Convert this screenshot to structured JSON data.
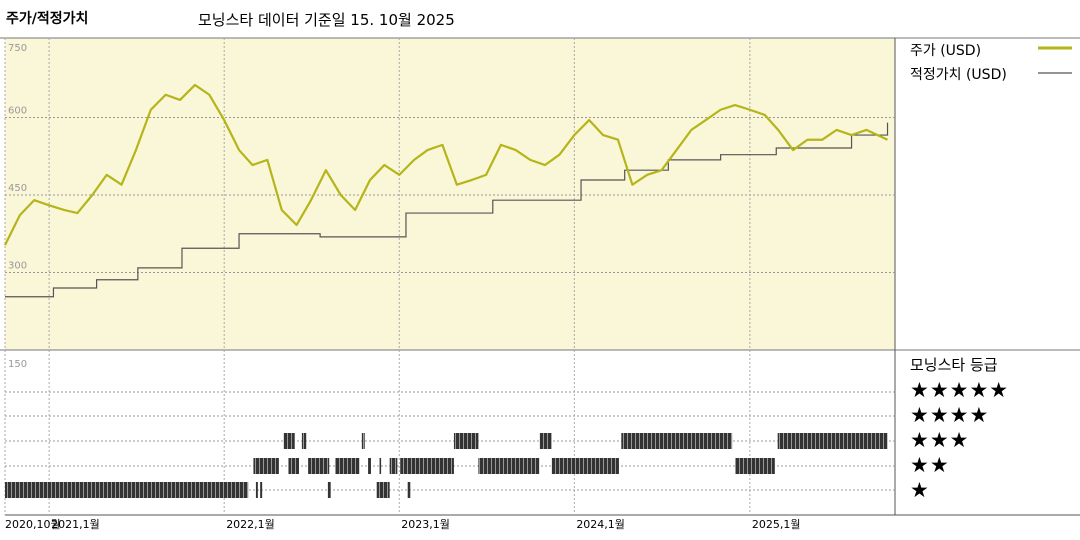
{
  "header": {
    "title": "주가/적정가치",
    "subtitle": "모닝스타 데이터 기준일 15. 10월 2025"
  },
  "legend": {
    "price_label": "주가 (USD)",
    "fair_label": "적정가치 (USD)",
    "rating_label": "모닝스타 등급"
  },
  "colors": {
    "price": "#b5b51a",
    "fair": "#555555",
    "plot_bg": "#faf6d8",
    "bar": "#333333"
  },
  "rating_rows": [
    "★★★★★",
    "★★★★",
    "★★★",
    "★★",
    "★"
  ],
  "chart_data": [
    {
      "type": "line",
      "ylim": [
        150,
        750
      ],
      "yticks": [
        "750",
        "600",
        "450",
        "300"
      ],
      "xticks": [
        {
          "date": "2020-10-01",
          "label": "2020,10월"
        },
        {
          "date": "2021-01-01",
          "label": "2021,1월"
        },
        {
          "date": "2022-01-01",
          "label": "2022,1월"
        },
        {
          "date": "2023-01-01",
          "label": "2023,1월"
        },
        {
          "date": "2024-01-01",
          "label": "2024,1월"
        },
        {
          "date": "2025-01-01",
          "label": "2025,1월"
        }
      ],
      "series": [
        {
          "name": "주가 (USD)",
          "points": [
            [
              "2020-10-01",
              353
            ],
            [
              "2020-11-01",
              411
            ],
            [
              "2020-12-01",
              440
            ],
            [
              "2021-01-01",
              430
            ],
            [
              "2021-02-01",
              421
            ],
            [
              "2021-03-01",
              415
            ],
            [
              "2021-04-01",
              450
            ],
            [
              "2021-05-01",
              489
            ],
            [
              "2021-06-01",
              470
            ],
            [
              "2021-07-01",
              537
            ],
            [
              "2021-08-01",
              615
            ],
            [
              "2021-09-01",
              644
            ],
            [
              "2021-10-01",
              634
            ],
            [
              "2021-11-01",
              663
            ],
            [
              "2021-12-01",
              644
            ],
            [
              "2022-01-01",
              595
            ],
            [
              "2022-02-01",
              537
            ],
            [
              "2022-03-01",
              508
            ],
            [
              "2022-04-01",
              518
            ],
            [
              "2022-05-01",
              421
            ],
            [
              "2022-06-01",
              392
            ],
            [
              "2022-07-01",
              440
            ],
            [
              "2022-08-01",
              498
            ],
            [
              "2022-09-01",
              450
            ],
            [
              "2022-10-01",
              421
            ],
            [
              "2022-11-01",
              479
            ],
            [
              "2022-12-01",
              508
            ],
            [
              "2023-01-01",
              489
            ],
            [
              "2023-02-01",
              518
            ],
            [
              "2023-03-01",
              537
            ],
            [
              "2023-04-01",
              547
            ],
            [
              "2023-05-01",
              470
            ],
            [
              "2023-06-01",
              479
            ],
            [
              "2023-07-01",
              489
            ],
            [
              "2023-08-01",
              547
            ],
            [
              "2023-09-01",
              537
            ],
            [
              "2023-10-01",
              518
            ],
            [
              "2023-11-01",
              508
            ],
            [
              "2023-12-01",
              528
            ],
            [
              "2024-01-01",
              566
            ],
            [
              "2024-02-01",
              595
            ],
            [
              "2024-03-01",
              566
            ],
            [
              "2024-04-01",
              557
            ],
            [
              "2024-05-01",
              470
            ],
            [
              "2024-06-01",
              489
            ],
            [
              "2024-07-01",
              498
            ],
            [
              "2024-08-01",
              537
            ],
            [
              "2024-09-01",
              576
            ],
            [
              "2024-10-01",
              595
            ],
            [
              "2024-11-01",
              615
            ],
            [
              "2024-12-01",
              624
            ],
            [
              "2025-01-01",
              615
            ],
            [
              "2025-02-01",
              605
            ],
            [
              "2025-03-01",
              576
            ],
            [
              "2025-04-01",
              537
            ],
            [
              "2025-05-01",
              557
            ],
            [
              "2025-06-01",
              557
            ],
            [
              "2025-07-01",
              576
            ],
            [
              "2025-08-01",
              566
            ],
            [
              "2025-09-01",
              576
            ],
            [
              "2025-10-15",
              557
            ]
          ]
        },
        {
          "name": "적정가치 (USD)",
          "step": true,
          "points": [
            [
              "2020-10-01",
              253
            ],
            [
              "2021-01-10",
              270
            ],
            [
              "2021-04-10",
              286
            ],
            [
              "2021-07-05",
              309
            ],
            [
              "2021-10-05",
              347
            ],
            [
              "2022-02-01",
              375
            ],
            [
              "2022-07-20",
              369
            ],
            [
              "2023-01-15",
              415
            ],
            [
              "2023-07-15",
              440
            ],
            [
              "2024-01-15",
              479
            ],
            [
              "2024-04-15",
              498
            ],
            [
              "2024-07-15",
              518
            ],
            [
              "2024-11-01",
              528
            ],
            [
              "2025-02-25",
              541
            ],
            [
              "2025-08-01",
              566
            ],
            [
              "2025-10-15",
              590
            ]
          ]
        }
      ]
    },
    {
      "type": "bar",
      "title": "모닝스타 등급",
      "yticks": [
        "150"
      ],
      "periods": [
        {
          "stars": 1,
          "start": "2020-10-01",
          "end": "2022-02-20"
        },
        {
          "stars": 1,
          "start": "2022-03-08",
          "end": "2022-03-11"
        },
        {
          "stars": 1,
          "start": "2022-03-17",
          "end": "2022-03-20"
        },
        {
          "stars": 1,
          "start": "2022-08-05",
          "end": "2022-08-11"
        },
        {
          "stars": 1,
          "start": "2022-11-15",
          "end": "2022-12-12"
        },
        {
          "stars": 1,
          "start": "2023-01-18",
          "end": "2023-01-24"
        },
        {
          "stars": 2,
          "start": "2022-03-03",
          "end": "2022-04-25"
        },
        {
          "stars": 2,
          "start": "2022-05-15",
          "end": "2022-06-06"
        },
        {
          "stars": 2,
          "start": "2022-06-25",
          "end": "2022-08-08"
        },
        {
          "stars": 2,
          "start": "2022-08-20",
          "end": "2022-10-10"
        },
        {
          "stars": 2,
          "start": "2022-10-28",
          "end": "2022-11-03"
        },
        {
          "stars": 2,
          "start": "2022-11-20",
          "end": "2022-11-23"
        },
        {
          "stars": 2,
          "start": "2022-12-12",
          "end": "2022-12-28"
        },
        {
          "stars": 2,
          "start": "2023-01-03",
          "end": "2023-04-25"
        },
        {
          "stars": 2,
          "start": "2023-06-15",
          "end": "2023-10-20"
        },
        {
          "stars": 2,
          "start": "2023-11-15",
          "end": "2024-04-03"
        },
        {
          "stars": 2,
          "start": "2024-12-01",
          "end": "2025-02-22"
        },
        {
          "stars": 3,
          "start": "2022-05-05",
          "end": "2022-05-28"
        },
        {
          "stars": 3,
          "start": "2022-06-12",
          "end": "2022-06-21"
        },
        {
          "stars": 3,
          "start": "2022-10-15",
          "end": "2022-10-21"
        },
        {
          "stars": 3,
          "start": "2023-04-25",
          "end": "2023-06-15"
        },
        {
          "stars": 3,
          "start": "2023-10-21",
          "end": "2023-11-15"
        },
        {
          "stars": 3,
          "start": "2024-04-08",
          "end": "2024-11-25"
        },
        {
          "stars": 3,
          "start": "2025-02-28",
          "end": "2025-10-15"
        }
      ]
    }
  ]
}
